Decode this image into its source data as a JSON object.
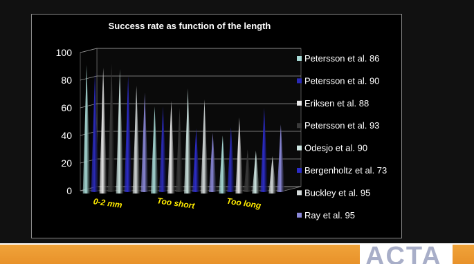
{
  "chart_data": {
    "type": "bar",
    "title": "Success rate as function of the length",
    "categories": [
      "0-2 mm",
      "Too short",
      "Too long"
    ],
    "series": [
      {
        "name": "Petersson et al. 86",
        "color": "#a9dcd8",
        "values": [
          91,
          61,
          40
        ]
      },
      {
        "name": "Petersson et al. 90",
        "color": "#2a2ab8",
        "values": [
          86,
          61,
          46
        ]
      },
      {
        "name": "Eriksen et al. 88",
        "color": "#e8e8e8",
        "values": [
          89,
          65,
          53
        ]
      },
      {
        "name": "Petersson et al. 93",
        "color": "#3a3a3a",
        "values": [
          92,
          60,
          30
        ]
      },
      {
        "name": "Odesjo et al. 90",
        "color": "#cfe7e3",
        "values": [
          88,
          74,
          29
        ]
      },
      {
        "name": "Bergenholtz et al. 73",
        "color": "#2c2cc8",
        "values": [
          83,
          45,
          60
        ]
      },
      {
        "name": "Buckley et al. 95",
        "color": "#d4dada",
        "values": [
          76,
          66,
          25
        ]
      },
      {
        "name": "Ray et al. 95",
        "color": "#8a88d8",
        "values": [
          71,
          42,
          48
        ]
      }
    ],
    "ylim": [
      0,
      100
    ],
    "yticks": [
      0,
      20,
      40,
      60,
      80,
      100
    ],
    "xlabel": "",
    "ylabel": "",
    "legend": "right",
    "grid": true
  },
  "branding": {
    "logo_text": "ACTA",
    "bar_color": "#f0a33a"
  }
}
